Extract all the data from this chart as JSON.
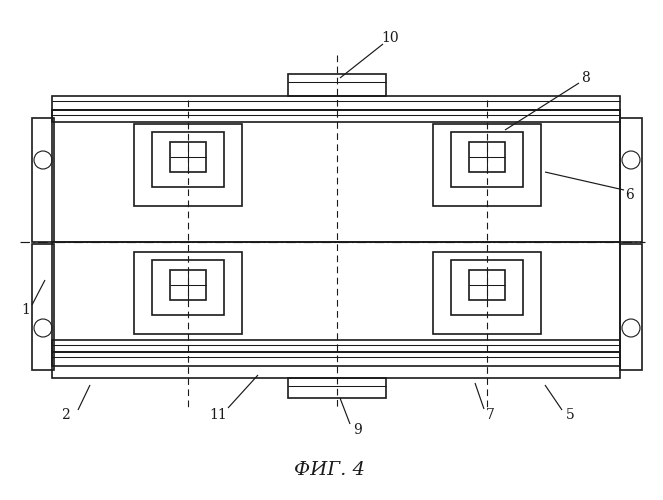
{
  "title": "ФИГ. 4",
  "bg_color": "#ffffff",
  "lc": "#1a1a1a",
  "lw": 1.2,
  "tlw": 0.75,
  "fig_width": 6.63,
  "fig_height": 5.0
}
